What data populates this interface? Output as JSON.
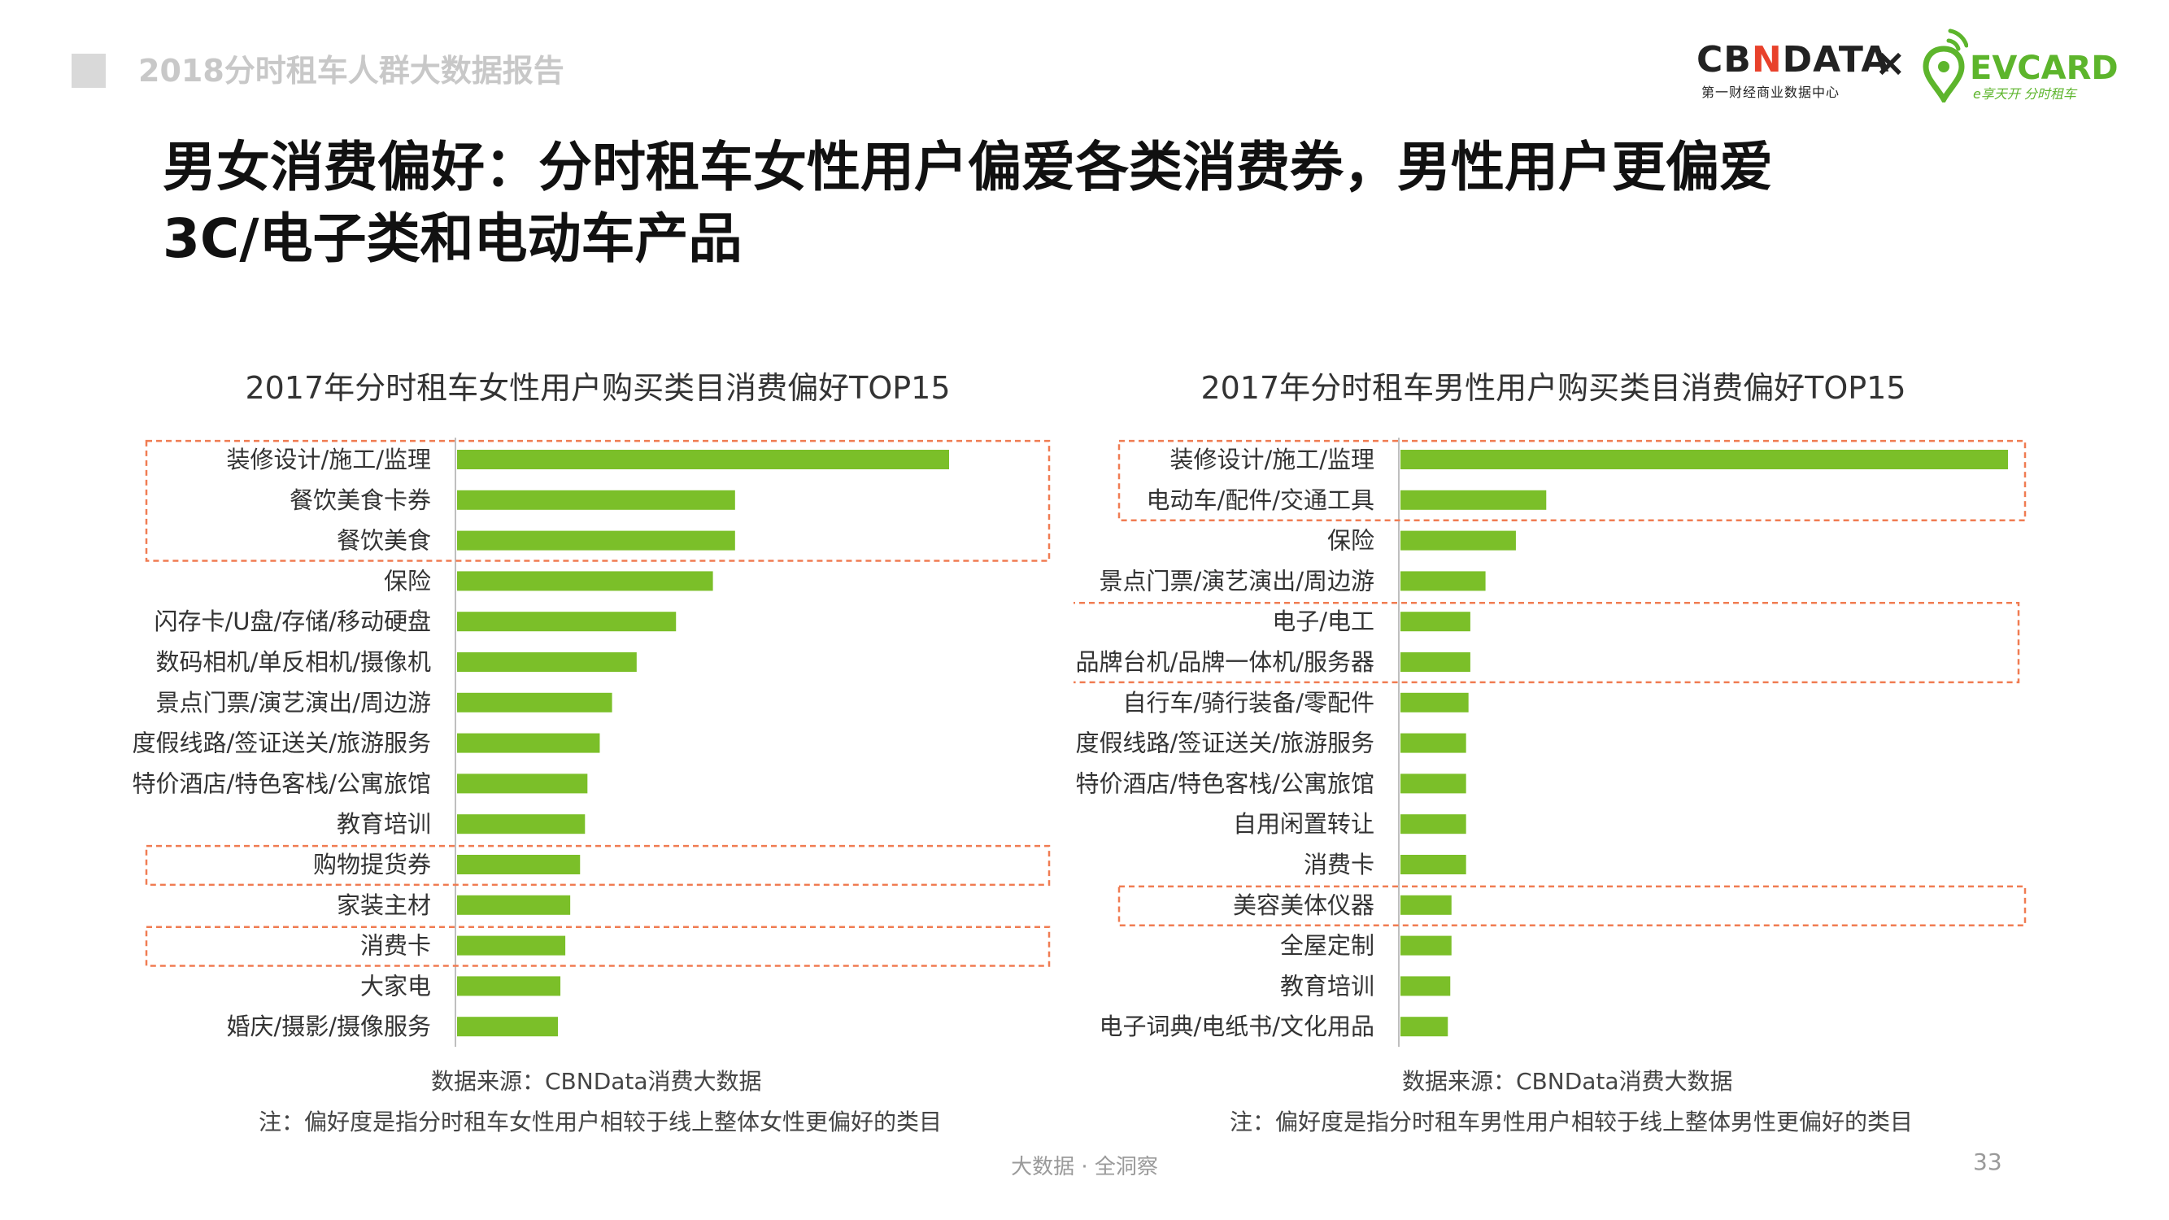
{
  "header": {
    "report_title": "2018分时租车人群大数据报告"
  },
  "logos": {
    "cbn_pre": "CB",
    "cbn_accent": "N",
    "cbn_post": "DATA",
    "cbn_sub": "第一财经商业数据中心",
    "times": "×",
    "ev_name": "EVCARD",
    "ev_sub": "e享天开 分时租车"
  },
  "headline": {
    "line1": "男女消费偏好：分时租车女性用户偏爱各类消费券，男性用户更偏爱",
    "line2": "3C/电子类和电动车产品"
  },
  "colors": {
    "bar": "#7bbf29",
    "highlight": "#f07c52",
    "axis": "#bfbfbf"
  },
  "chart_data": [
    {
      "type": "bar",
      "orientation": "horizontal",
      "title": "2017年分时租车女性用户购买类目消费偏好TOP15",
      "xlim": [
        0,
        100
      ],
      "categories": [
        "装修设计/施工/监理",
        "餐饮美食卡券",
        "餐饮美食",
        "保险",
        "闪存卡/U盘/存储/移动硬盘",
        "数码相机/单反相机/摄像机",
        "景点门票/演艺演出/周边游",
        "度假线路/签证送关/旅游服务",
        "特价酒店/特色客栈/公寓旅馆",
        "教育培训",
        "购物提货券",
        "家装主材",
        "消费卡",
        "大家电",
        "婚庆/摄影/摄像服务"
      ],
      "values": [
        100,
        56.5,
        56.5,
        52,
        44.5,
        36.5,
        31.5,
        29,
        26.5,
        26,
        25,
        23,
        22,
        21,
        20.5
      ],
      "highlight_groups": [
        [
          0,
          2
        ],
        [
          10,
          10
        ],
        [
          12,
          12
        ]
      ],
      "source": "数据来源：CBNData消费大数据",
      "note": "注：偏好度是指分时租车女性用户相较于线上整体女性更偏好的类目"
    },
    {
      "type": "bar",
      "orientation": "horizontal",
      "title": "2017年分时租车男性用户购买类目消费偏好TOP15",
      "xlim": [
        0,
        100
      ],
      "categories": [
        "装修设计/施工/监理",
        "电动车/配件/交通工具",
        "保险",
        "景点门票/演艺演出/周边游",
        "电子/电工",
        "品牌台机/品牌一体机/服务器",
        "自行车/骑行装备/零配件",
        "度假线路/签证送关/旅游服务",
        "特价酒店/特色客栈/公寓旅馆",
        "自用闲置转让",
        "消费卡",
        "美容美体仪器",
        "全屋定制",
        "教育培训",
        "电子词典/电纸书/文化用品"
      ],
      "values": [
        100,
        24,
        19,
        14,
        11.5,
        11.5,
        11.2,
        10.8,
        10.8,
        10.8,
        10.8,
        8.4,
        8.4,
        8.2,
        7.8
      ],
      "highlight_groups": [
        [
          0,
          1
        ],
        [
          4,
          5
        ],
        [
          11,
          11
        ]
      ],
      "source": "数据来源：CBNData消费大数据",
      "note": "注：偏好度是指分时租车男性用户相较于线上整体男性更偏好的类目"
    }
  ],
  "footer": {
    "slogan": "大数据 · 全洞察",
    "page_number": "33"
  }
}
